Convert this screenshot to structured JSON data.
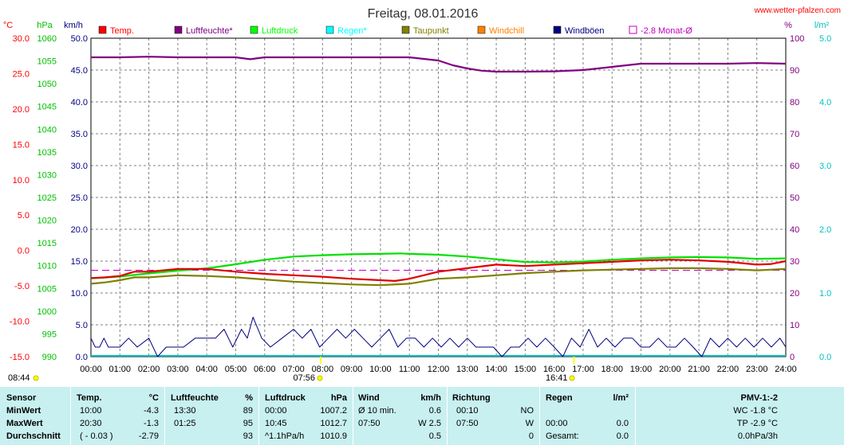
{
  "header": {
    "title": "Freitag, 08.01.2016",
    "site": "www.wetter-pfalzen.com"
  },
  "chart_data": {
    "type": "line",
    "x_unit": "hours",
    "x_ticks": [
      "00:00",
      "01:00",
      "02:00",
      "03:00",
      "04:00",
      "05:00",
      "06:00",
      "07:00",
      "08:00",
      "09:00",
      "10:00",
      "11:00",
      "12:00",
      "13:00",
      "14:00",
      "15:00",
      "16:00",
      "17:00",
      "18:00",
      "19:00",
      "20:00",
      "21:00",
      "22:00",
      "23:00",
      "24:00"
    ],
    "axes": {
      "temp_c": {
        "label": "°C",
        "min": -15,
        "max": 30,
        "ticks": [
          "30.0",
          "25.0",
          "20.0",
          "15.0",
          "10.0",
          "5.0",
          "0.0",
          "-5.0",
          "-10.0",
          "-15.0"
        ],
        "color": "#ff0000"
      },
      "pressure_hpa": {
        "label": "hPa",
        "min": 990,
        "max": 1060,
        "ticks": [
          "1060",
          "1055",
          "1050",
          "1045",
          "1040",
          "1035",
          "1030",
          "1025",
          "1020",
          "1015",
          "1010",
          "1005",
          "1000",
          "995",
          "990"
        ],
        "color": "#00c000"
      },
      "wind_kmh": {
        "label": "km/h",
        "min": 0,
        "max": 50,
        "ticks": [
          "50.0",
          "45.0",
          "40.0",
          "35.0",
          "30.0",
          "25.0",
          "20.0",
          "15.0",
          "10.0",
          "5.0",
          "0.0"
        ],
        "color": "#000080"
      },
      "humidity_pct": {
        "label": "%",
        "min": 0,
        "max": 100,
        "ticks": [
          "100",
          "90",
          "80",
          "70",
          "60",
          "50",
          "40",
          "30",
          "20",
          "10",
          "0"
        ],
        "color": "#800080"
      },
      "rain_lm2": {
        "label": "l/m²",
        "min": 0,
        "max": 5,
        "ticks": [
          "5.0",
          "4.0",
          "3.0",
          "2.0",
          "1.0",
          "0.0"
        ],
        "color": "#00c0c0"
      }
    },
    "legend": [
      {
        "name": "Temp.",
        "color": "#ff0000"
      },
      {
        "name": "Luftfeuchte*",
        "color": "#800080"
      },
      {
        "name": "Luftdruck",
        "color": "#00ff00"
      },
      {
        "name": "Regen*",
        "color": "#00ffff"
      },
      {
        "name": "Taupunkt",
        "color": "#808000"
      },
      {
        "name": "Windchill",
        "color": "#ff8000"
      },
      {
        "name": "Windböen",
        "color": "#000080"
      },
      {
        "name": "-2.8 Monat-Ø",
        "color": "#c000c0",
        "open": true
      }
    ],
    "series": [
      {
        "key": "temp",
        "axis": "temp_c",
        "color": "#e00000",
        "x": [
          0,
          0.5,
          1,
          1.5,
          2,
          3,
          4,
          5,
          6,
          7,
          8,
          9,
          10,
          10.5,
          11,
          12,
          13,
          14,
          15,
          16,
          17,
          18,
          19,
          20,
          21,
          22,
          23,
          23.5,
          24
        ],
        "values": [
          -3.9,
          -3.8,
          -3.6,
          -3.0,
          -3.0,
          -2.6,
          -2.6,
          -3.0,
          -3.3,
          -3.5,
          -3.7,
          -4.0,
          -4.2,
          -4.3,
          -4.0,
          -3.0,
          -2.5,
          -2.0,
          -2.2,
          -2.0,
          -1.8,
          -1.6,
          -1.4,
          -1.3,
          -1.4,
          -1.6,
          -2.0,
          -1.9,
          -1.5
        ]
      },
      {
        "key": "humidity",
        "axis": "humidity_pct",
        "color": "#800080",
        "x": [
          0,
          1,
          2,
          3,
          4,
          5,
          5.5,
          6,
          7,
          8,
          9,
          10,
          11,
          12,
          12.5,
          13,
          13.5,
          14,
          15,
          16,
          17,
          18,
          19,
          20,
          21,
          22,
          23,
          24
        ],
        "values": [
          94,
          94,
          94.2,
          94,
          94,
          94,
          93.4,
          94,
          94,
          94,
          94,
          94,
          94,
          93,
          91.5,
          90.5,
          89.8,
          89.5,
          89.5,
          89.6,
          90,
          91,
          92,
          92,
          92,
          92,
          92.2,
          92
        ]
      },
      {
        "key": "pressure",
        "axis": "pressure_hpa",
        "color": "#00e000",
        "x": [
          0,
          1,
          2,
          3,
          4,
          5,
          6,
          7,
          8,
          9,
          10,
          10.7,
          11,
          12,
          13,
          14,
          15,
          16,
          17,
          18,
          19,
          20,
          21,
          22,
          23,
          24
        ],
        "values": [
          1007.2,
          1007.6,
          1008.3,
          1008.9,
          1009.4,
          1010.3,
          1011.3,
          1012,
          1012.3,
          1012.5,
          1012.6,
          1012.7,
          1012.6,
          1012.4,
          1012,
          1011.4,
          1010.8,
          1010.7,
          1010.9,
          1011.3,
          1011.6,
          1011.8,
          1011.9,
          1011.8,
          1011.5,
          1011.6
        ]
      },
      {
        "key": "dewpoint",
        "axis": "temp_c",
        "color": "#808000",
        "x": [
          0,
          0.5,
          1,
          1.5,
          2,
          3,
          4,
          5,
          6,
          7,
          8,
          9,
          10,
          11,
          12,
          13,
          14,
          15,
          16,
          17,
          18,
          19,
          20,
          21,
          22,
          23,
          24
        ],
        "values": [
          -4.7,
          -4.5,
          -4.2,
          -3.8,
          -3.8,
          -3.5,
          -3.6,
          -3.8,
          -4.1,
          -4.4,
          -4.6,
          -4.8,
          -4.9,
          -4.7,
          -4.0,
          -3.8,
          -3.5,
          -3.2,
          -3.0,
          -2.8,
          -2.7,
          -2.6,
          -2.5,
          -2.5,
          -2.6,
          -2.8,
          -2.6
        ]
      },
      {
        "key": "gusts",
        "axis": "wind_kmh",
        "color": "#000080",
        "x": [
          0,
          0.15,
          0.3,
          0.45,
          0.6,
          1,
          1.3,
          1.6,
          2,
          2.3,
          2.6,
          2.9,
          3.2,
          3.6,
          4,
          4.3,
          4.6,
          4.9,
          5.2,
          5.4,
          5.6,
          5.9,
          6.2,
          6.6,
          7,
          7.3,
          7.6,
          7.9,
          8.2,
          8.5,
          8.8,
          9.1,
          9.4,
          9.7,
          10,
          10.3,
          10.6,
          10.9,
          11.2,
          11.5,
          11.8,
          12.1,
          12.4,
          12.7,
          13,
          13.3,
          13.6,
          13.9,
          14.2,
          14.5,
          14.8,
          15.1,
          15.4,
          15.7,
          16,
          16.3,
          16.6,
          16.9,
          17.2,
          17.5,
          17.8,
          18.1,
          18.4,
          18.7,
          19,
          19.3,
          19.6,
          19.9,
          20.2,
          20.5,
          20.8,
          21.1,
          21.4,
          21.7,
          22,
          22.3,
          22.6,
          22.9,
          23.2,
          23.5,
          23.8,
          24
        ],
        "values": [
          2.9,
          1.5,
          1.5,
          2.9,
          1.5,
          1.5,
          2.9,
          1.5,
          2.9,
          0,
          1.5,
          1.5,
          1.5,
          2.9,
          2.9,
          2.9,
          4.3,
          1.5,
          4.3,
          2.9,
          6.2,
          2.9,
          1.5,
          2.9,
          4.3,
          2.9,
          4.3,
          1.5,
          2.9,
          4.3,
          2.9,
          4.3,
          2.9,
          1.5,
          2.9,
          4.3,
          1.5,
          2.9,
          2.9,
          1.5,
          2.9,
          1.5,
          2.9,
          1.5,
          2.9,
          1.5,
          1.5,
          1.5,
          0,
          1.5,
          1.5,
          2.9,
          1.5,
          2.9,
          1.5,
          0,
          2.9,
          1.5,
          4.3,
          1.5,
          2.9,
          1.5,
          2.9,
          2.9,
          1.5,
          1.5,
          2.9,
          1.5,
          1.5,
          2.9,
          1.5,
          0,
          2.9,
          1.5,
          2.9,
          1.5,
          2.9,
          1.5,
          2.9,
          1.5,
          2.9,
          1.5
        ]
      }
    ],
    "rain": {
      "axis": "rain_lm2",
      "value": 0.0,
      "color": "#00c0c0"
    },
    "month_avg": {
      "axis": "temp_c",
      "value": -2.8,
      "color": "#c000c0"
    },
    "sunrise": "07:56",
    "sunset": "16:41",
    "sunshine_duration": "08:44"
  },
  "stats": {
    "headers": {
      "sensor": "Sensor",
      "temp": "Temp.",
      "temp_unit": "°C",
      "hum": "Luftfeuchte",
      "hum_unit": "%",
      "press": "Luftdruck",
      "press_unit": "hPa",
      "wind": "Wind",
      "wind_unit": "km/h",
      "dir": "Richtung",
      "rain": "Regen",
      "rain_unit": "l/m²",
      "pmv": "PMV-1:-2"
    },
    "rows": [
      {
        "label": "MinWert",
        "temp_time": "10:00",
        "temp_val": "-4.3",
        "hum_time": "13:30",
        "hum_val": "89",
        "press_time": "00:00",
        "press_val": "1007.2",
        "wind_label": "Ø 10 min.",
        "wind_val": "0.6",
        "dir_time": "00:10",
        "dir_val": "NO",
        "rain_time": "",
        "rain_val": "",
        "pmv": "WC -1.8 °C"
      },
      {
        "label": "MaxWert",
        "temp_time": "20:30",
        "temp_val": "-1.3",
        "hum_time": "01:25",
        "hum_val": "95",
        "press_time": "10:45",
        "press_val": "1012.7",
        "wind_label": "07:50",
        "wind_val": "W 2.5",
        "dir_time": "07:50",
        "dir_val": "W",
        "rain_time": "00:00",
        "rain_val": "0.0",
        "pmv": "TP -2.9 °C"
      },
      {
        "label": "Durchschnitt",
        "temp_time": "( - 0.03 )",
        "temp_val": "-2.79",
        "hum_time": "",
        "hum_val": "93",
        "press_time": "^1.1hPa/h",
        "press_val": "1010.9",
        "wind_label": "",
        "wind_val": "0.5",
        "dir_time": "",
        "dir_val": "0",
        "rain_time": "Gesamt:",
        "rain_val": "0.0",
        "pmv": "0.0hPa/3h"
      }
    ]
  }
}
